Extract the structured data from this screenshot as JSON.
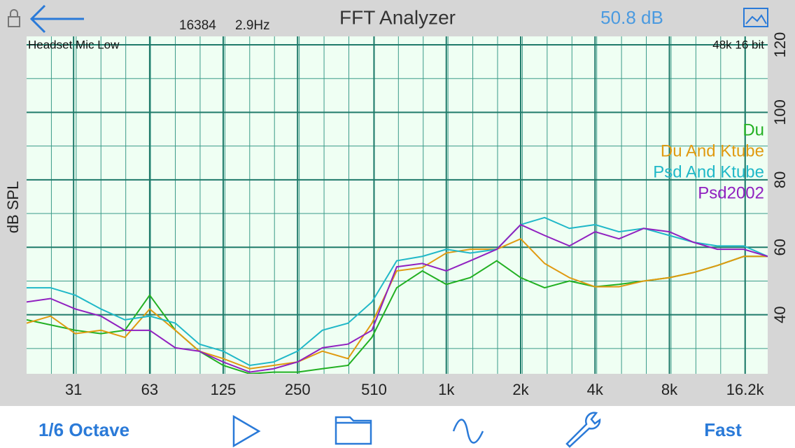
{
  "header": {
    "fft_size": "16384",
    "resolution": "2.9Hz",
    "title": "FFT Analyzer",
    "level": "50.8 dB"
  },
  "chart_data": {
    "type": "line",
    "y_label": "dB SPL",
    "log_x": true,
    "grid": true,
    "legend": "upper right",
    "annotations": [
      "Headset Mic Low",
      "48k 16 bit"
    ],
    "x": [
      20,
      25,
      31.5,
      40,
      50,
      63,
      80,
      100,
      125,
      160,
      200,
      250,
      315,
      400,
      500,
      630,
      800,
      1000,
      1250,
      1600,
      2000,
      2500,
      3150,
      4000,
      5000,
      6300,
      8000,
      10000,
      12500,
      16000,
      20000
    ],
    "xlim": [
      20,
      20000
    ],
    "xticks": [
      31,
      63,
      125,
      250,
      510,
      {
        "value": 1000,
        "label": "1k"
      },
      {
        "value": 2000,
        "label": "2k"
      },
      {
        "value": 4000,
        "label": "4k"
      },
      {
        "value": 8000,
        "label": "8k"
      },
      {
        "value": 16200,
        "label": "16.2k"
      }
    ],
    "ylim": [
      22.5,
      122.5
    ],
    "yticks": [
      40,
      60,
      80,
      100,
      120
    ],
    "series": [
      {
        "name": "Du",
        "color": "#22b022",
        "values": [
          38.5,
          37,
          35.4,
          34.4,
          35.4,
          45.8,
          35.4,
          29.2,
          25,
          22.5,
          23,
          23,
          24,
          25,
          33.3,
          48,
          53,
          49,
          51,
          56,
          51,
          48,
          50,
          48.3,
          49,
          50,
          51,
          52.5,
          54.6,
          57.3,
          57.3
        ]
      },
      {
        "name": "Du And Ktube",
        "color": "#e09a10",
        "values": [
          37.5,
          39.6,
          34.4,
          35.4,
          33.3,
          41.7,
          35.4,
          29.2,
          27,
          24,
          25,
          26,
          29.2,
          27,
          37.5,
          53,
          54,
          58.3,
          59.4,
          59.4,
          62.5,
          55.2,
          51,
          48.3,
          48.3,
          50,
          51,
          52.5,
          54.6,
          57.3,
          57.3
        ]
      },
      {
        "name": "Psd And Ktube",
        "color": "#20b8c8",
        "values": [
          48,
          48,
          45.8,
          41.7,
          38.5,
          39.6,
          37.5,
          31.3,
          29.2,
          25,
          26,
          29.2,
          35.4,
          37.5,
          43.8,
          56,
          57.3,
          59.4,
          58.3,
          59.4,
          66.7,
          68.8,
          65.6,
          66.7,
          64.6,
          65.6,
          63.5,
          61.5,
          60.4,
          60.4,
          57.3
        ]
      },
      {
        "name": "Psd2002",
        "color": "#9020c0",
        "values": [
          43.8,
          44.8,
          41.7,
          39.6,
          35.4,
          35.4,
          30.2,
          29.2,
          26,
          23,
          24,
          26,
          30.2,
          31.3,
          35.4,
          54.2,
          55.2,
          53,
          56,
          59.4,
          66.7,
          63.5,
          60.4,
          64.6,
          62.5,
          65.6,
          64.6,
          61.5,
          59.4,
          59.4,
          57.3
        ]
      }
    ]
  },
  "toolbar": {
    "resolution": "1/6 Octave",
    "speed": "Fast"
  }
}
